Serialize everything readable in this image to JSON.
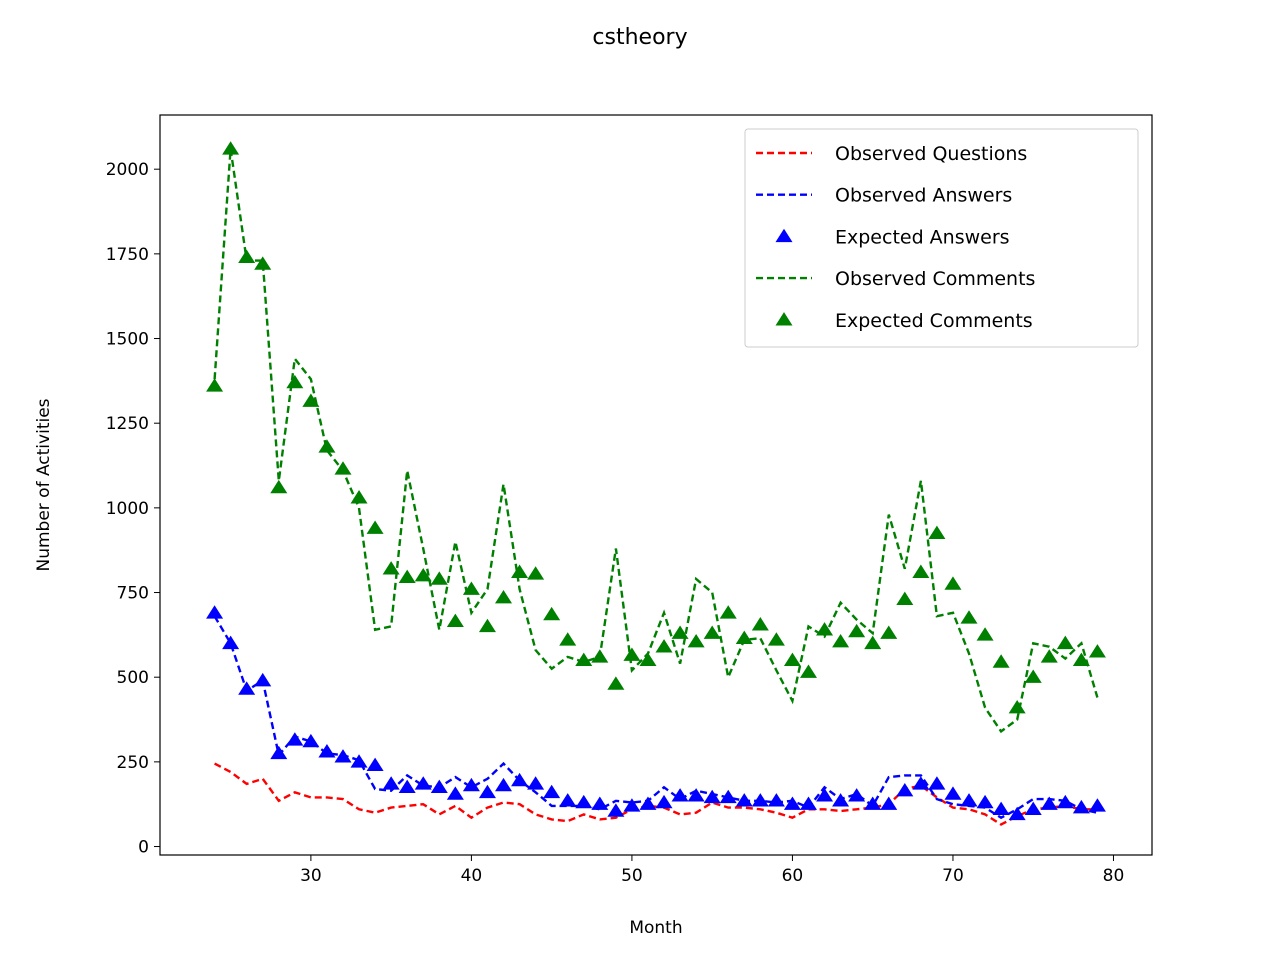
{
  "chart_data": {
    "type": "line",
    "title": "cstheory",
    "xlabel": "Month",
    "ylabel": "Number of Activities",
    "xlim": [
      20.6,
      82.4
    ],
    "ylim": [
      -25,
      2160
    ],
    "xticks": [
      30,
      40,
      50,
      60,
      70,
      80
    ],
    "yticks": [
      0,
      250,
      500,
      750,
      1000,
      1250,
      1500,
      1750,
      2000
    ],
    "grid": false,
    "legend_position": "top-right",
    "x": [
      24,
      25,
      26,
      27,
      28,
      29,
      30,
      31,
      32,
      33,
      34,
      35,
      36,
      37,
      38,
      39,
      40,
      41,
      42,
      43,
      44,
      45,
      46,
      47,
      48,
      49,
      50,
      51,
      52,
      53,
      54,
      55,
      56,
      57,
      58,
      59,
      60,
      61,
      62,
      63,
      64,
      65,
      66,
      67,
      68,
      69,
      70,
      71,
      72,
      73,
      74,
      75,
      76,
      77,
      78,
      79
    ],
    "series": [
      {
        "name": "Observed Questions",
        "style": "dashed",
        "color": "#ff0000",
        "values": [
          245,
          220,
          185,
          200,
          135,
          160,
          145,
          145,
          140,
          110,
          100,
          115,
          120,
          125,
          95,
          120,
          85,
          115,
          130,
          125,
          95,
          80,
          75,
          95,
          80,
          85,
          110,
          120,
          115,
          95,
          100,
          130,
          115,
          115,
          110,
          100,
          85,
          110,
          110,
          105,
          110,
          115,
          125,
          170,
          180,
          145,
          115,
          110,
          95,
          65,
          90,
          110,
          115,
          120,
          110,
          110
        ]
      },
      {
        "name": "Observed Answers",
        "style": "dashed",
        "color": "#0000ff",
        "values": [
          680,
          600,
          460,
          490,
          270,
          325,
          310,
          275,
          270,
          255,
          170,
          165,
          210,
          180,
          175,
          205,
          175,
          200,
          245,
          195,
          160,
          120,
          120,
          120,
          110,
          135,
          130,
          135,
          175,
          140,
          165,
          155,
          145,
          135,
          135,
          130,
          135,
          115,
          175,
          140,
          155,
          120,
          205,
          210,
          210,
          140,
          125,
          120,
          115,
          85,
          110,
          140,
          140,
          135,
          110,
          100
        ]
      },
      {
        "name": "Expected Answers",
        "style": "marker",
        "color": "#0000ff",
        "values": [
          690,
          600,
          465,
          490,
          275,
          315,
          310,
          280,
          265,
          250,
          240,
          185,
          175,
          185,
          175,
          155,
          180,
          160,
          180,
          195,
          185,
          160,
          135,
          130,
          125,
          105,
          120,
          125,
          130,
          150,
          150,
          145,
          145,
          135,
          135,
          135,
          125,
          125,
          150,
          135,
          150,
          125,
          125,
          165,
          185,
          185,
          155,
          135,
          130,
          110,
          95,
          110,
          125,
          130,
          115,
          120
        ]
      },
      {
        "name": "Observed Comments",
        "style": "dashed",
        "color": "#008000",
        "values": [
          1380,
          2060,
          1730,
          1730,
          1080,
          1440,
          1380,
          1170,
          1110,
          1000,
          640,
          650,
          1110,
          880,
          640,
          900,
          690,
          760,
          1070,
          760,
          580,
          525,
          560,
          545,
          560,
          880,
          520,
          570,
          690,
          540,
          790,
          750,
          500,
          610,
          615,
          520,
          430,
          650,
          620,
          720,
          670,
          630,
          980,
          820,
          1080,
          680,
          690,
          570,
          410,
          340,
          375,
          600,
          590,
          555,
          600,
          440
        ]
      },
      {
        "name": "Expected Comments",
        "style": "marker",
        "color": "#008000",
        "values": [
          1360,
          2060,
          1740,
          1720,
          1060,
          1370,
          1315,
          1180,
          1115,
          1030,
          940,
          820,
          795,
          800,
          790,
          665,
          760,
          650,
          735,
          810,
          805,
          685,
          610,
          550,
          560,
          480,
          565,
          550,
          590,
          630,
          605,
          630,
          690,
          615,
          655,
          610,
          550,
          515,
          640,
          605,
          635,
          600,
          630,
          730,
          810,
          925,
          775,
          675,
          625,
          545,
          410,
          500,
          560,
          600,
          550,
          575
        ]
      }
    ]
  }
}
